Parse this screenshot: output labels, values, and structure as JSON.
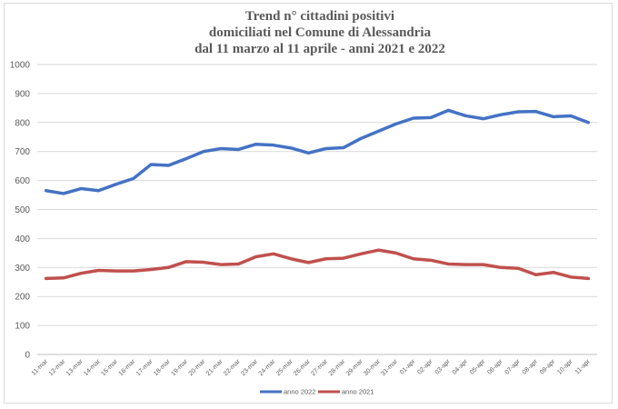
{
  "chart_data": {
    "type": "line",
    "title": [
      "Trend n° cittadini positivi",
      "domiciliati nel Comune di Alessandria",
      "dal 11 marzo al 11 aprile - anni 2021 e 2022"
    ],
    "xlabel": "",
    "ylabel": "",
    "ylim": [
      0,
      1000
    ],
    "yticks": [
      0,
      100,
      200,
      300,
      400,
      500,
      600,
      700,
      800,
      900,
      1000
    ],
    "grid": true,
    "legend_position": "bottom",
    "categories": [
      "11-mar",
      "12-mar",
      "13-mar",
      "14-mar",
      "15-mar",
      "16-mar",
      "17-mar",
      "18-mar",
      "19-mar",
      "20-mar",
      "21-mar",
      "22-mar",
      "23-mar",
      "24-mar",
      "25-mar",
      "26-mar",
      "27-mar",
      "28-mar",
      "29-mar",
      "30-mar",
      "31-mar",
      "01-apr",
      "02-apr",
      "03-apr",
      "04-apr",
      "05-apr",
      "06-apr",
      "07-apr",
      "08-apr",
      "09-apr",
      "10-apr",
      "11-apr"
    ],
    "series": [
      {
        "name": "anno 2022",
        "color": "#4472c4",
        "values": [
          565,
          555,
          572,
          565,
          587,
          607,
          655,
          652,
          675,
          700,
          710,
          707,
          725,
          722,
          712,
          695,
          710,
          713,
          745,
          770,
          795,
          815,
          817,
          842,
          823,
          813,
          827,
          837,
          838,
          820,
          823,
          800
        ]
      },
      {
        "name": "anno 2021",
        "color": "#c0504d",
        "values": [
          262,
          264,
          280,
          290,
          288,
          288,
          293,
          300,
          320,
          318,
          310,
          312,
          337,
          347,
          330,
          317,
          330,
          332,
          347,
          360,
          350,
          330,
          325,
          312,
          310,
          310,
          300,
          297,
          275,
          283,
          267,
          262
        ]
      }
    ]
  }
}
